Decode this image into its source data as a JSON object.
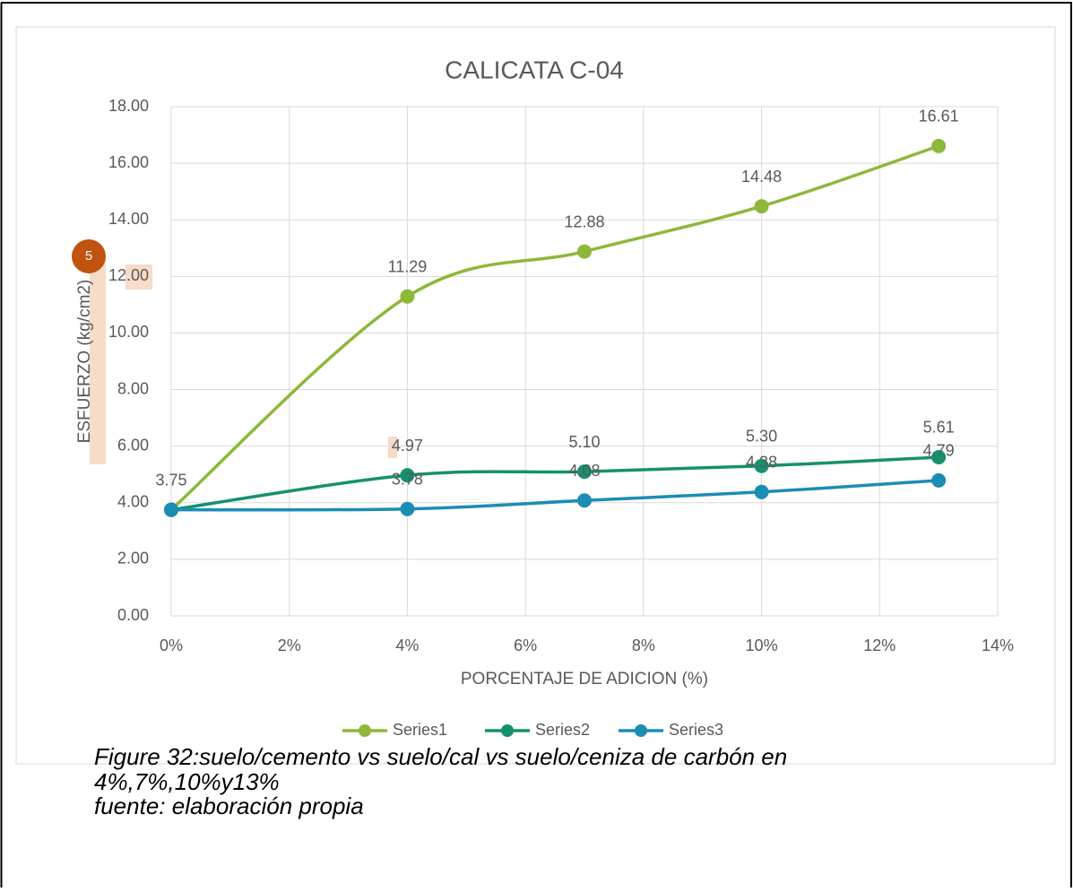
{
  "chart_data": {
    "type": "line",
    "title": "CALICATA C-04",
    "x_label": "PORCENTAJE DE ADICION (%)",
    "y_label": "ESFUERZO (kg/cm2)",
    "x": [
      0,
      4,
      7,
      10,
      13
    ],
    "series": [
      {
        "name": "Series1",
        "color": "#8db83a",
        "values": [
          3.75,
          11.29,
          12.88,
          14.48,
          16.61
        ],
        "value_labels": [
          "3.75",
          "11.29",
          "12.88",
          "14.48",
          "16.61"
        ]
      },
      {
        "name": "Series2",
        "color": "#15916f",
        "values": [
          3.75,
          4.97,
          5.1,
          5.3,
          5.61
        ],
        "value_labels": [
          null,
          "4.97",
          "5.10",
          "5.30",
          "5.61"
        ]
      },
      {
        "name": "Series3",
        "color": "#1b8db5",
        "values": [
          3.75,
          3.78,
          4.08,
          4.38,
          4.79
        ],
        "value_labels": [
          null,
          "3.78",
          "4.08",
          "4.38",
          "4.79"
        ]
      }
    ],
    "xlim": [
      0,
      14
    ],
    "xticks": [
      {
        "value": 0,
        "label": "0%"
      },
      {
        "value": 2,
        "label": "2%"
      },
      {
        "value": 4,
        "label": "4%"
      },
      {
        "value": 6,
        "label": "6%"
      },
      {
        "value": 8,
        "label": "8%"
      },
      {
        "value": 10,
        "label": "10%"
      },
      {
        "value": 12,
        "label": "12%"
      },
      {
        "value": 14,
        "label": "14%"
      }
    ],
    "ylim": [
      0,
      18
    ],
    "yticks": [
      {
        "value": 0,
        "label": "0.00"
      },
      {
        "value": 2,
        "label": "2.00"
      },
      {
        "value": 4,
        "label": "4.00"
      },
      {
        "value": 6,
        "label": "6.00"
      },
      {
        "value": 8,
        "label": "8.00"
      },
      {
        "value": 10,
        "label": "10.00"
      },
      {
        "value": 12,
        "label": "12.00"
      },
      {
        "value": 14,
        "label": "14.00"
      },
      {
        "value": 16,
        "label": "16.00"
      },
      {
        "value": 18,
        "label": "18.00"
      }
    ],
    "grid": true,
    "legend": "bottom",
    "smooth": true
  },
  "badge": {
    "label": "5"
  },
  "caption": [
    "Figure 32:suelo/cemento vs suelo/cal vs suelo/ceniza de carbón en",
    "4%,7%,10%y13%",
    "fuente: elaboración propia"
  ]
}
